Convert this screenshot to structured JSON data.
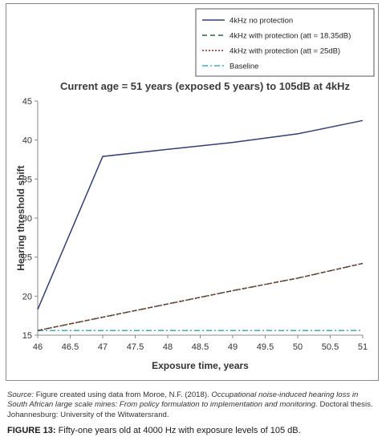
{
  "chart_data": {
    "type": "line",
    "title": "Current age = 51 years (exposed 5 years) to 105dB at 4kHz",
    "xlabel": "Exposure time, years",
    "ylabel": "Hearing threshold shift",
    "xlim": [
      46,
      51
    ],
    "ylim": [
      15,
      45
    ],
    "xticks": [
      "46",
      "46.5",
      "47",
      "47.5",
      "48",
      "48.5",
      "49",
      "49.5",
      "50",
      "50.5",
      "51"
    ],
    "yticks": [
      "15",
      "20",
      "25",
      "30",
      "35",
      "40",
      "45"
    ],
    "grid": false,
    "legend_position": "top-right",
    "series": [
      {
        "name": "4kHz no protection",
        "color": "#2e3f7c",
        "style": "solid",
        "x": [
          46,
          47,
          48,
          49,
          50,
          51
        ],
        "y": [
          18.3,
          37.9,
          38.8,
          39.7,
          40.8,
          42.5
        ]
      },
      {
        "name": "4kHz with protection (att = 18.35dB)",
        "color": "#1f6e3a",
        "style": "dashed",
        "x": [
          46,
          47,
          48,
          49,
          50,
          51
        ],
        "y": [
          15.6,
          17.3,
          19.0,
          20.7,
          22.3,
          24.2
        ]
      },
      {
        "name": "4kHz with protection (att = 25dB)",
        "color": "#8b2323",
        "style": "dotted",
        "x": [
          46,
          47,
          48,
          49,
          50,
          51
        ],
        "y": [
          15.6,
          17.3,
          19.0,
          20.7,
          22.3,
          24.2
        ]
      },
      {
        "name": "Baseline",
        "color": "#3aaec0",
        "style": "dashdot",
        "x": [
          46,
          51
        ],
        "y": [
          15.6,
          15.6
        ]
      }
    ]
  },
  "caption": {
    "source_label": "Source:",
    "source_text_1": "Figure created using data from Moroe, N.F. (2018).",
    "source_italic": "Occupational noise-induced hearing loss in South African large scale mines: From policy formulation to implementation and monitoring.",
    "source_text_2": "Doctoral thesis. Johannesburg: University of the Witwatersrand.",
    "figure_label": "FIGURE 13:",
    "figure_text": "Fifty-one years old at 4000 Hz with exposure levels of 105 dB."
  }
}
